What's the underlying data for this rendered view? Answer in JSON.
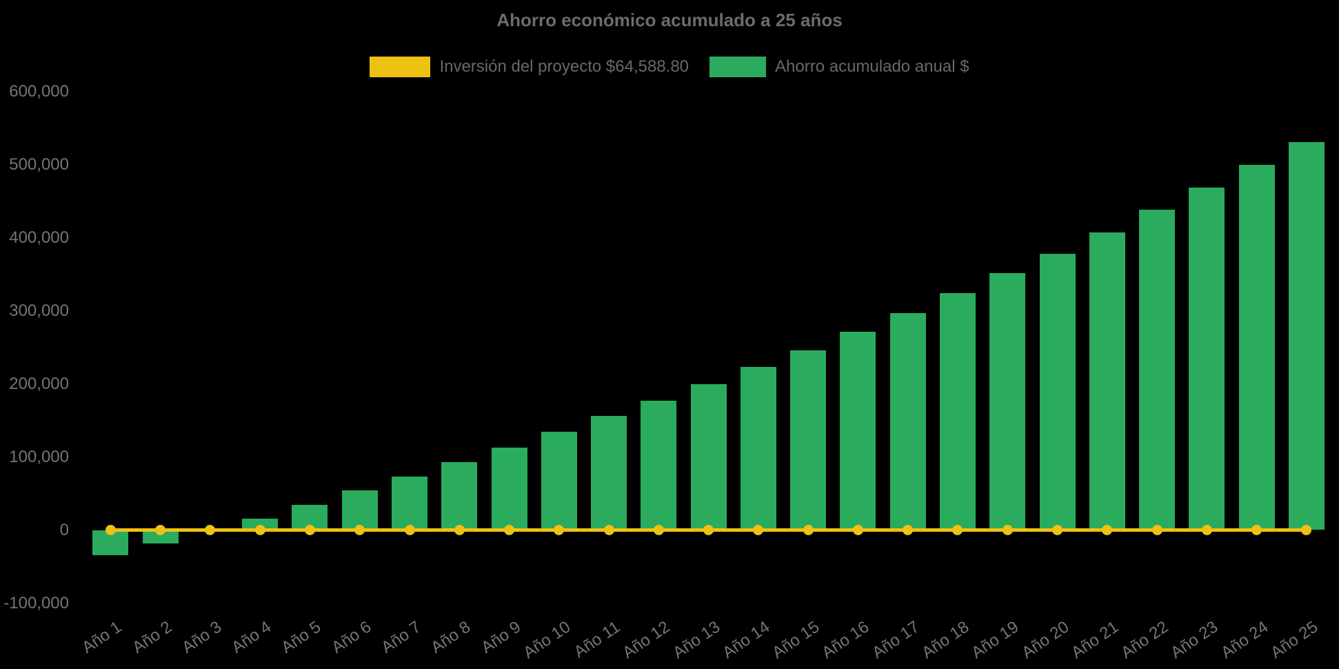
{
  "colors": {
    "background": "#000000",
    "bar_green": "#2BAB5D",
    "line_yellow": "#EDC213",
    "title_text": "#6C6C6C",
    "legend_text": "#636A6E",
    "axis_text": "#757575"
  },
  "legend": {
    "items": [
      {
        "label": "Inversión del proyecto $64,588.80",
        "color": "#EDC213",
        "series_type": "line"
      },
      {
        "label": "Ahorro acumulado anual $",
        "color": "#2BAB5D",
        "series_type": "bar"
      }
    ]
  },
  "chart_data": {
    "type": "bar",
    "title": "Ahorro económico acumulado a 25 años",
    "xlabel": "",
    "ylabel": "",
    "grid": false,
    "legend_position": "top",
    "background": "#000000",
    "x_tick_rotation_deg": -34,
    "ylim": [
      -100000,
      600000
    ],
    "categories": [
      "Año 1",
      "Año 2",
      "Año 3",
      "Año 4",
      "Año 5",
      "Año 6",
      "Año 7",
      "Año 8",
      "Año 9",
      "Año 10",
      "Año 11",
      "Año 12",
      "Año 13",
      "Año 14",
      "Año 15",
      "Año 16",
      "Año 17",
      "Año 18",
      "Año 19",
      "Año 20",
      "Año 21",
      "Año 22",
      "Año 23",
      "Año 24",
      "Año 25"
    ],
    "y_ticks": [
      {
        "value": 600000,
        "label": "600,000"
      },
      {
        "value": 500000,
        "label": "500,000"
      },
      {
        "value": 400000,
        "label": "400,000"
      },
      {
        "value": 300000,
        "label": "300,000"
      },
      {
        "value": 200000,
        "label": "200,000"
      },
      {
        "value": 100000,
        "label": "100,000"
      },
      {
        "value": 0,
        "label": "0"
      },
      {
        "value": -100000,
        "label": "-100,000"
      }
    ],
    "series": [
      {
        "name": "Inversión del proyecto $64,588.80",
        "type": "line",
        "color": "#EDC213",
        "investment_amount_label": "$64,588.80",
        "values": [
          0,
          0,
          0,
          0,
          0,
          0,
          0,
          0,
          0,
          0,
          0,
          0,
          0,
          0,
          0,
          0,
          0,
          0,
          0,
          0,
          0,
          0,
          0,
          0,
          0
        ]
      },
      {
        "name": "Ahorro acumulado anual $",
        "type": "bar",
        "color": "#2BAB5D",
        "values": [
          -34000,
          -18000,
          -1500,
          16000,
          34000,
          54000,
          73000,
          93000,
          113000,
          134000,
          156000,
          177000,
          200000,
          223000,
          246000,
          271000,
          297000,
          324000,
          351000,
          378000,
          407000,
          438000,
          468000,
          500000,
          531000
        ]
      }
    ]
  }
}
